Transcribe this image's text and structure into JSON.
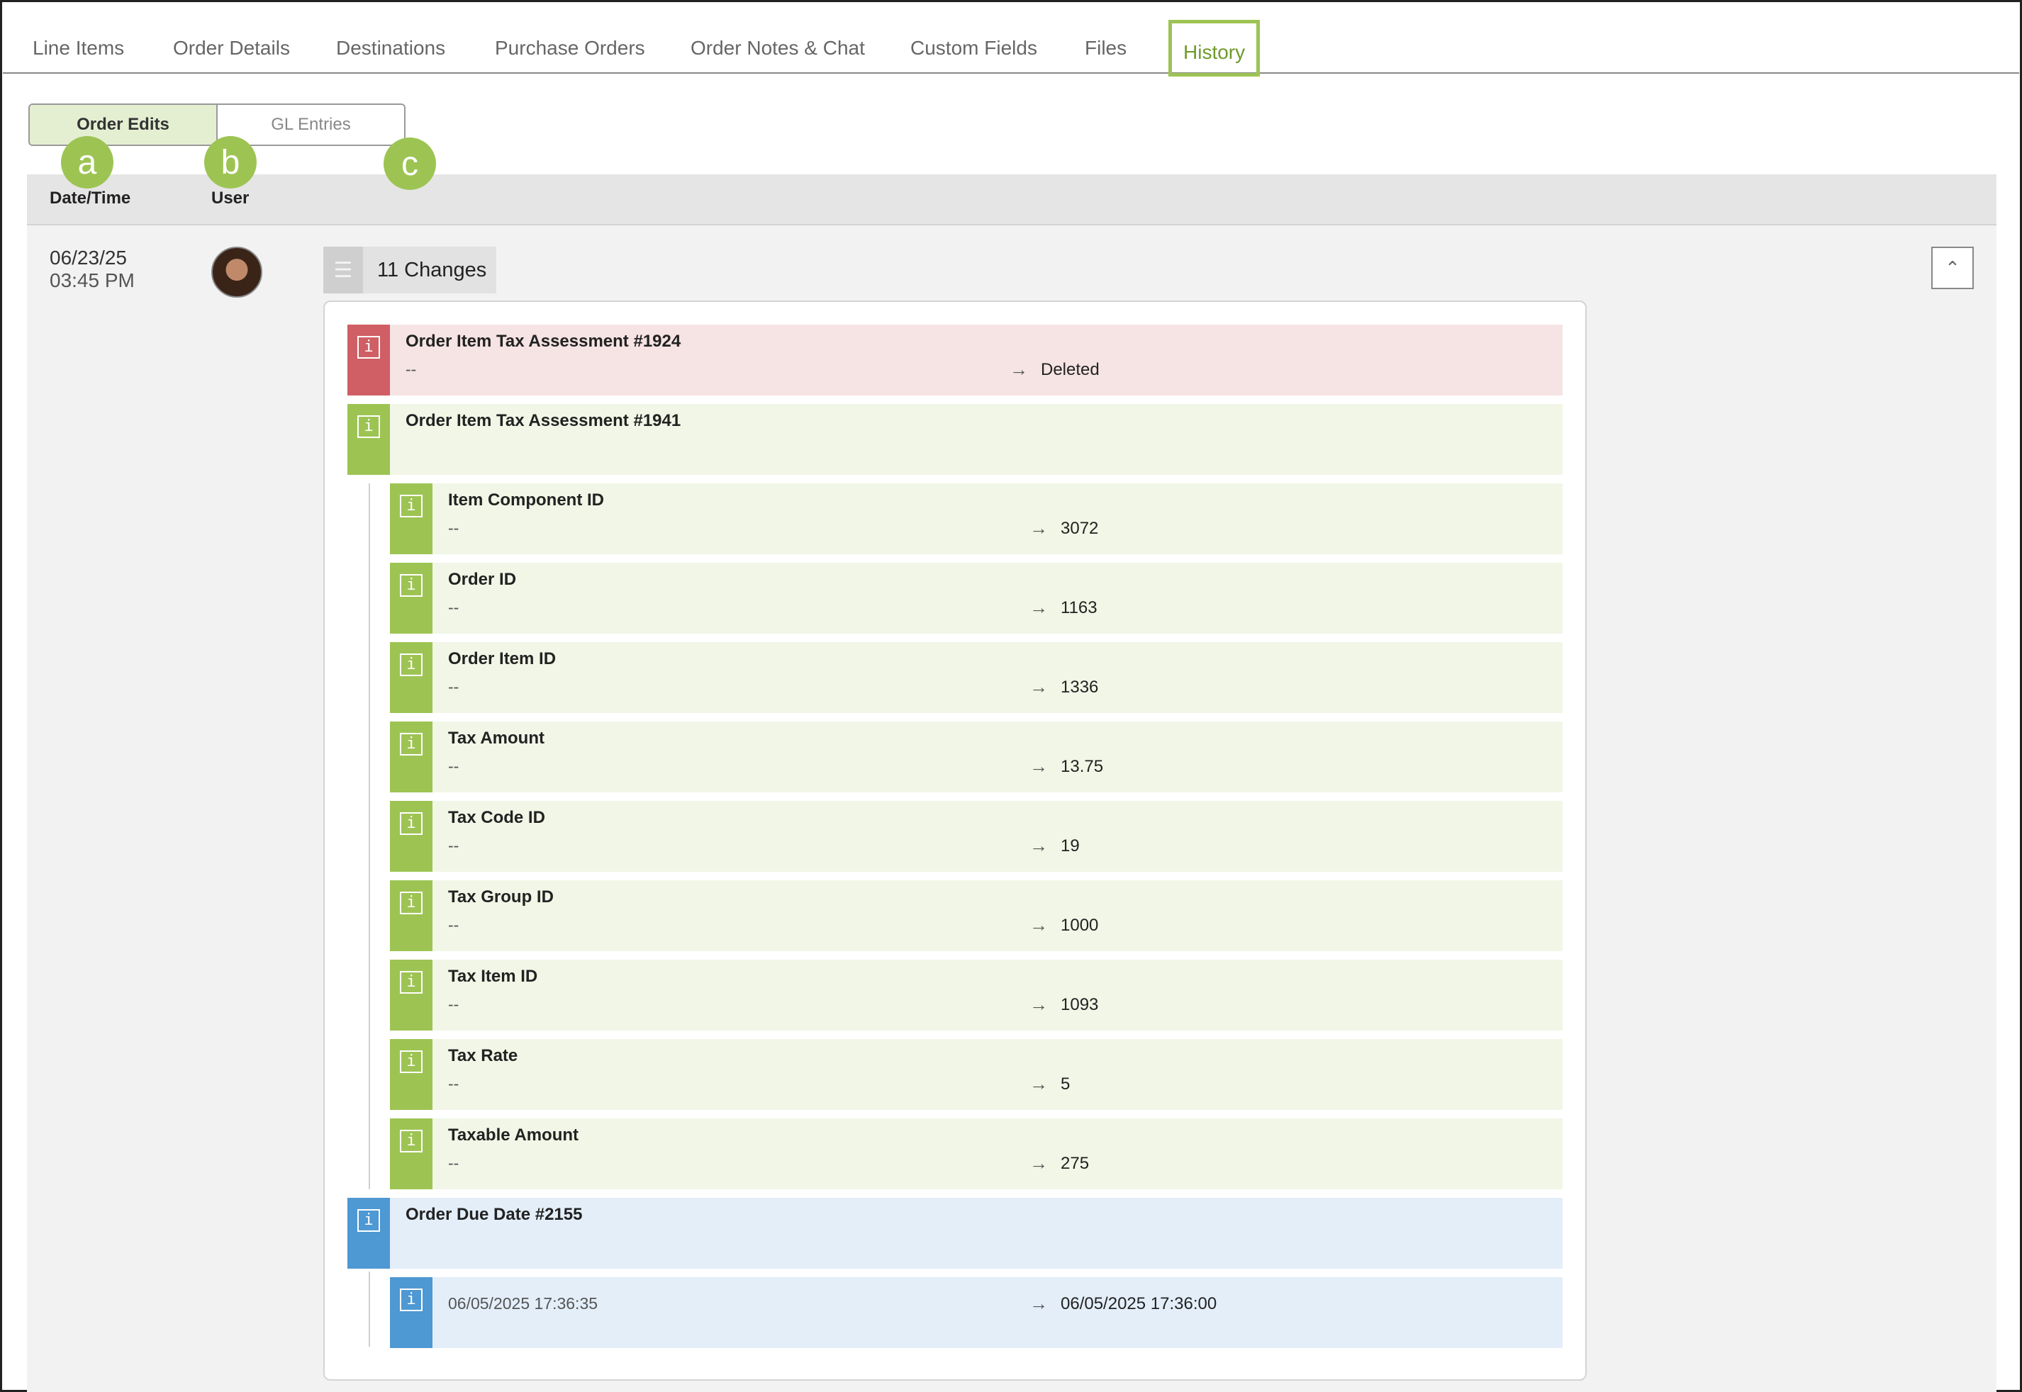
{
  "tabs": [
    "Line Items",
    "Order Details",
    "Destinations",
    "Purchase Orders",
    "Order Notes & Chat",
    "Custom Fields",
    "Files",
    "History"
  ],
  "active_tab": "History",
  "subtabs": {
    "order_edits": "Order Edits",
    "gl_entries": "GL Entries"
  },
  "callouts": {
    "a": "a",
    "b": "b",
    "c": "c"
  },
  "columns": {
    "datetime": "Date/Time",
    "user": "User"
  },
  "entry": {
    "date": "06/23/25",
    "time": "03:45 PM",
    "changes_label": "11 Changes",
    "items": [
      {
        "title": "Order Item Tax Assessment #1924",
        "old": "--",
        "new": "Deleted",
        "status": "deleted"
      },
      {
        "title": "Order Item Tax Assessment #1941",
        "old": "",
        "new": "",
        "status": "added"
      },
      {
        "title": "Item Component ID",
        "old": "--",
        "new": "3072",
        "status": "added"
      },
      {
        "title": "Order ID",
        "old": "--",
        "new": "1163",
        "status": "added"
      },
      {
        "title": "Order Item ID",
        "old": "--",
        "new": "1336",
        "status": "added"
      },
      {
        "title": "Tax Amount",
        "old": "--",
        "new": "13.75",
        "status": "added"
      },
      {
        "title": "Tax Code ID",
        "old": "--",
        "new": "19",
        "status": "added"
      },
      {
        "title": "Tax Group ID",
        "old": "--",
        "new": "1000",
        "status": "added"
      },
      {
        "title": "Tax Item ID",
        "old": "--",
        "new": "1093",
        "status": "added"
      },
      {
        "title": "Tax Rate",
        "old": "--",
        "new": "5",
        "status": "added"
      },
      {
        "title": "Taxable Amount",
        "old": "--",
        "new": "275",
        "status": "added"
      },
      {
        "title": "Order Due Date #2155",
        "old": "",
        "new": "",
        "status": "modified"
      },
      {
        "title": "",
        "old": "06/05/2025 17:36:35",
        "new": "06/05/2025 17:36:00",
        "status": "modified"
      }
    ]
  },
  "colors": {
    "accent": "#9dc453",
    "deleted": "#cf5f64",
    "modified": "#4e98d3"
  },
  "icons": {
    "info": "info-icon",
    "changes": "layers-icon",
    "collapse": "chevron-up-icon",
    "arrow": "arrow-right-icon"
  }
}
